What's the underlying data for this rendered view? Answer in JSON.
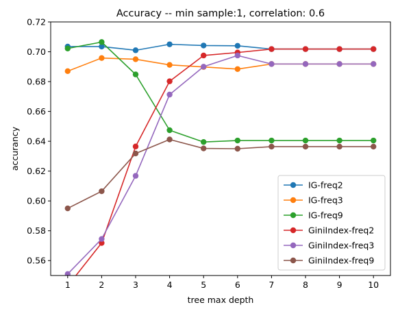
{
  "chart_data": {
    "type": "line",
    "title": "Accuracy -- min sample:1, correlation: 0.6",
    "xlabel": "tree max depth",
    "ylabel": "accurancy",
    "x": [
      1,
      2,
      3,
      4,
      5,
      6,
      7,
      8,
      9,
      10
    ],
    "xlim": [
      0.5,
      10.5
    ],
    "ylim": [
      0.55,
      0.72
    ],
    "yticks": [
      0.56,
      0.58,
      0.6,
      0.62,
      0.64,
      0.66,
      0.68,
      0.7,
      0.72
    ],
    "ytick_labels": [
      "0.56",
      "0.58",
      "0.60",
      "0.62",
      "0.64",
      "0.66",
      "0.68",
      "0.70",
      "0.72"
    ],
    "xtick_labels": [
      "1",
      "2",
      "3",
      "4",
      "5",
      "6",
      "7",
      "8",
      "9",
      "10"
    ],
    "grid": false,
    "legend_position": "lower-right",
    "series": [
      {
        "name": "IG-freq2",
        "color": "#1f77b4",
        "values": [
          0.7035,
          0.7035,
          0.701,
          0.705,
          0.7042,
          0.704,
          0.7018,
          0.7018,
          0.7018,
          0.7018
        ]
      },
      {
        "name": "IG-freq3",
        "color": "#ff7f0e",
        "values": [
          0.687,
          0.6958,
          0.695,
          0.6912,
          0.6898,
          0.6884,
          0.6918,
          0.6918,
          0.6918,
          0.6918
        ]
      },
      {
        "name": "IG-freq9",
        "color": "#2ca02c",
        "values": [
          0.7022,
          0.7065,
          0.6848,
          0.6474,
          0.6395,
          0.6405,
          0.6405,
          0.6405,
          0.6405,
          0.6405
        ]
      },
      {
        "name": "GiniIndex-freq2",
        "color": "#d62728",
        "values": [
          0.543,
          0.5718,
          0.6365,
          0.6802,
          0.6975,
          0.6995,
          0.7018,
          0.7018,
          0.7018,
          0.7018
        ]
      },
      {
        "name": "GiniIndex-freq3",
        "color": "#9467bd",
        "values": [
          0.551,
          0.5745,
          0.6168,
          0.6713,
          0.69,
          0.6975,
          0.6918,
          0.6918,
          0.6918,
          0.6918
        ]
      },
      {
        "name": "GiniIndex-freq9",
        "color": "#8c564b",
        "values": [
          0.595,
          0.6065,
          0.6318,
          0.6412,
          0.6352,
          0.635,
          0.6364,
          0.6364,
          0.6364,
          0.6364
        ]
      }
    ]
  }
}
